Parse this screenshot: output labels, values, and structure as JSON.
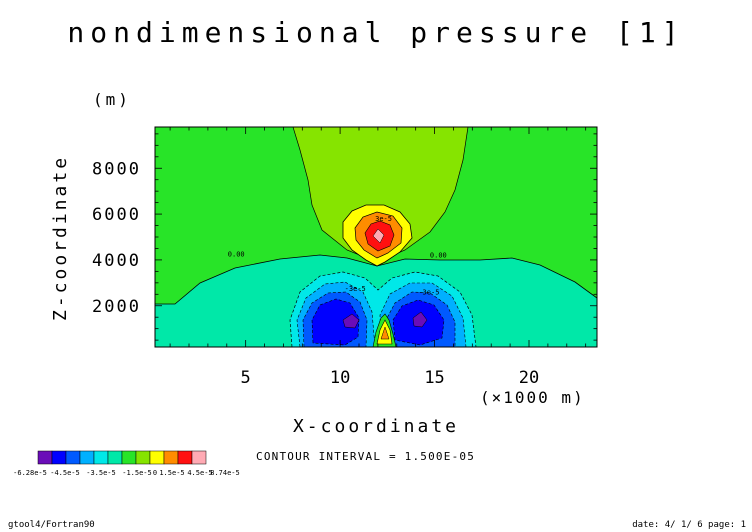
{
  "chart_data": {
    "type": "contour",
    "title": "nondimensional pressure [1]",
    "xlabel": "X-coordinate",
    "ylabel": "Z-coordinate",
    "yunit": "(m)",
    "xunit": "(×1000 m)",
    "xlim": [
      0.2,
      23.6
    ],
    "ylim": [
      200,
      9800
    ],
    "x_ticks": [
      5,
      10,
      15,
      20
    ],
    "y_ticks": [
      2000,
      4000,
      6000,
      8000
    ],
    "x_tick_labels": [
      "5",
      "10",
      "15",
      "20"
    ],
    "y_tick_labels": [
      "2000",
      "4000",
      "6000",
      "8000"
    ],
    "contour_interval": 1.5e-05,
    "contour_labels": [
      {
        "text": "3e-5",
        "x": 12.3,
        "y": 5700
      },
      {
        "text": "0.00",
        "x": 4.5,
        "y": 4150
      },
      {
        "text": "0.00",
        "x": 15.2,
        "y": 4100
      },
      {
        "text": "-3e-5",
        "x": 10.8,
        "y": 2650
      },
      {
        "text": "-3e-5",
        "x": 14.7,
        "y": 2500
      }
    ],
    "extrema": {
      "high": {
        "x": 12.5,
        "y": 5100,
        "value": 8.74e-05
      },
      "low_left": {
        "x": 10.5,
        "y": 1600
      },
      "low_right": {
        "x": 14.3,
        "y": 1600
      },
      "peak_bottom": {
        "x": 12.5,
        "y": 900
      }
    },
    "colorbar": {
      "colors": [
        "#6a0db8",
        "#0000ff",
        "#005aff",
        "#00b0ff",
        "#00e8e8",
        "#00e8a8",
        "#28e428",
        "#86e400",
        "#ffff00",
        "#ff8c00",
        "#ff1010",
        "#ffaab4"
      ],
      "labels": [
        "-6.28e-5",
        "-4.5e-5",
        "-3.5e-5",
        "-1.5e-5",
        "0",
        "1.5e-5",
        "4.5e-5",
        "8.74e-5"
      ]
    },
    "legend": "none"
  },
  "contour_interval_text": "CONTOUR INTERVAL = 1.500E-05",
  "footer": {
    "left": "gtool4/Fortran90",
    "right": "date: 4/ 1/ 6 page: 1"
  }
}
